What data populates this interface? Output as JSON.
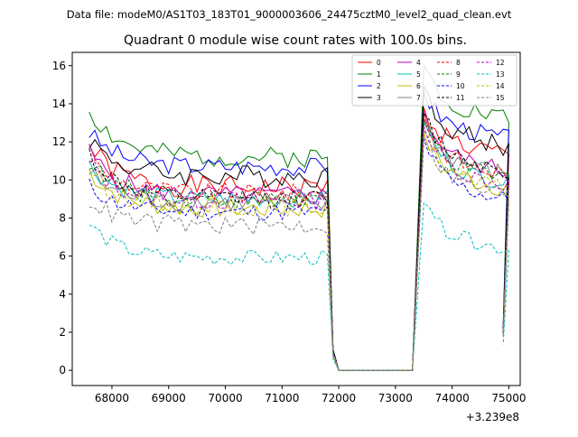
{
  "chart_data": {
    "type": "line",
    "suptitle": "Data file: modeM0/AS1T03_183T01_9000003606_24475cztM0_level2_quad_clean.evt",
    "title": "Quadrant 0 module wise count rates with 100.0s bins.",
    "xlabel": "",
    "ylabel": "",
    "x_offset_label": "+3.239e8",
    "xlim": [
      67300,
      75200
    ],
    "ylim": [
      -0.8,
      16.7
    ],
    "x_ticks": [
      68000,
      69000,
      70000,
      71000,
      72000,
      73000,
      74000,
      75000
    ],
    "x_tick_labels": [
      "68000",
      "69000",
      "70000",
      "71000",
      "72000",
      "73000",
      "74000",
      "75000"
    ],
    "y_ticks": [
      0,
      2,
      4,
      6,
      8,
      10,
      12,
      14,
      16
    ],
    "y_tick_labels": [
      "0",
      "2",
      "4",
      "6",
      "8",
      "10",
      "12",
      "14",
      "16"
    ],
    "legend_position": "top-right",
    "gap": {
      "start": 71800,
      "end": 73400
    },
    "segment1": {
      "start": 67600,
      "step": 100,
      "count": 43
    },
    "segment2": {
      "start": 73400,
      "step": 100,
      "count": 16
    },
    "series": [
      {
        "name": "0",
        "color": "#ff0000",
        "dash": "solid",
        "level1": 9.6,
        "level2": 12.0,
        "first": 11.8,
        "peak": 13.8,
        "amp": 0.6,
        "seed": 1
      },
      {
        "name": "1",
        "color": "#008000",
        "dash": "solid",
        "level1": 11.2,
        "level2": 14.0,
        "first": 13.7,
        "peak": 16.0,
        "amp": 0.55,
        "seed": 2
      },
      {
        "name": "2",
        "color": "#0000ff",
        "dash": "solid",
        "level1": 10.7,
        "level2": 12.9,
        "first": 12.5,
        "peak": 14.6,
        "amp": 0.5,
        "seed": 3
      },
      {
        "name": "3",
        "color": "#000000",
        "dash": "solid",
        "level1": 10.2,
        "level2": 12.5,
        "first": 12.2,
        "peak": 14.9,
        "amp": 0.6,
        "seed": 4
      },
      {
        "name": "4",
        "color": "#bf00bf",
        "dash": "solid",
        "level1": 9.2,
        "level2": 11.2,
        "first": 11.5,
        "peak": 13.6,
        "amp": 0.5,
        "seed": 5
      },
      {
        "name": "5",
        "color": "#00bfbf",
        "dash": "solid",
        "level1": 9.0,
        "level2": 10.6,
        "first": 10.8,
        "peak": 13.0,
        "amp": 0.45,
        "seed": 6
      },
      {
        "name": "6",
        "color": "#bfbf00",
        "dash": "solid",
        "level1": 8.5,
        "level2": 10.3,
        "first": 10.5,
        "peak": 12.5,
        "amp": 0.55,
        "seed": 7
      },
      {
        "name": "7",
        "color": "#808080",
        "dash": "solid",
        "level1": 8.8,
        "level2": 11.0,
        "first": 10.4,
        "peak": 13.2,
        "amp": 0.55,
        "seed": 8
      },
      {
        "name": "8",
        "color": "#ff0000",
        "dash": "dashed",
        "level1": 9.3,
        "level2": 11.0,
        "first": 11.2,
        "peak": 13.3,
        "amp": 0.5,
        "seed": 9
      },
      {
        "name": "9",
        "color": "#008000",
        "dash": "dashed",
        "level1": 9.0,
        "level2": 10.8,
        "first": 11.0,
        "peak": 13.1,
        "amp": 0.5,
        "seed": 10
      },
      {
        "name": "10",
        "color": "#0000ff",
        "dash": "dashed",
        "level1": 8.3,
        "level2": 9.7,
        "first": 9.7,
        "peak": 12.2,
        "amp": 0.45,
        "seed": 11
      },
      {
        "name": "11",
        "color": "#000000",
        "dash": "dashed",
        "level1": 9.0,
        "level2": 11.3,
        "first": 11.4,
        "peak": 13.5,
        "amp": 0.5,
        "seed": 12
      },
      {
        "name": "12",
        "color": "#bf00bf",
        "dash": "dashed",
        "level1": 8.9,
        "level2": 10.5,
        "first": 10.9,
        "peak": 12.8,
        "amp": 0.5,
        "seed": 13
      },
      {
        "name": "13",
        "color": "#00bfbf",
        "dash": "dashed",
        "level1": 5.9,
        "level2": 7.1,
        "first": 7.7,
        "peak": 8.8,
        "amp": 0.4,
        "seed": 14
      },
      {
        "name": "14",
        "color": "#bfbf00",
        "dash": "dashed",
        "level1": 8.6,
        "level2": 10.2,
        "first": 10.6,
        "peak": 12.4,
        "amp": 0.5,
        "seed": 15
      },
      {
        "name": "15",
        "color": "#808080",
        "dash": "dashed",
        "level1": 7.6,
        "level2": 9.9,
        "first": 9.0,
        "peak": 12.6,
        "amp": 0.5,
        "seed": 16
      }
    ]
  }
}
